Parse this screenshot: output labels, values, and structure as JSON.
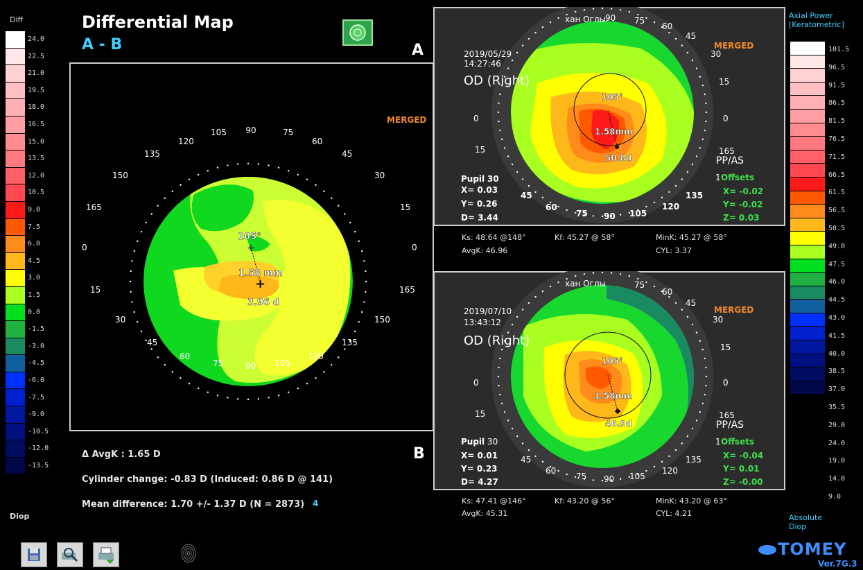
{
  "diff_panel": {
    "header": "Diff",
    "unit": "Diop",
    "values": [
      "24.0",
      "22.5",
      "21.0",
      "19.5",
      "18.0",
      "16.5",
      "15.0",
      "13.5",
      "12.0",
      "10.5",
      "9.0",
      "7.5",
      "6.0",
      "4.5",
      "3.0",
      "1.5",
      "0.0",
      "-1.5",
      "-3.0",
      "-4.5",
      "-6.0",
      "-7.5",
      "-9.0",
      "-10.5",
      "-12.0",
      "-13.5"
    ],
    "colors": [
      "#ffffff",
      "#ffe6e8",
      "#ffd0d4",
      "#ffc0c4",
      "#ffb0b4",
      "#ff9ea2",
      "#ff8c90",
      "#ff7a80",
      "#ff6068",
      "#ff4850",
      "#ff1a1a",
      "#ff5a00",
      "#ff8c1a",
      "#ffb81a",
      "#ffff00",
      "#a8ff20",
      "#00e020",
      "#20b040",
      "#1a8a60",
      "#1060a0",
      "#0030ff",
      "#0020d0",
      "#0018a0",
      "#001080",
      "#000c60",
      "#00084a"
    ]
  },
  "title": "Differential Map",
  "subtitle": "A - B",
  "label_a": "A",
  "label_b": "B",
  "merged": "MERGED",
  "diff_map": {
    "angle_105": "105°",
    "distance": "1.58 mm",
    "value": "3.96 d",
    "ticks": [
      "90",
      "75",
      "60",
      "45",
      "30",
      "15",
      "0",
      "165",
      "150",
      "135",
      "120",
      "105",
      "90",
      "75",
      "60",
      "45",
      "30",
      "15",
      "0",
      "165",
      "150",
      "135",
      "120",
      "105"
    ],
    "axis": {
      "t90": "90",
      "t75": "75",
      "t60": "60",
      "t45": "45",
      "t30": "30",
      "t15": "15",
      "t0r": "0",
      "t165": "165",
      "t150": "150",
      "t135": "135",
      "t120": "120",
      "t105b": "105",
      "t90b": "90",
      "t75b": "75",
      "t60b": "60",
      "t45b": "45",
      "t30b": "30",
      "t15b": "15",
      "t0l": "0",
      "t165l": "165",
      "t150l": "150",
      "t135l": "135",
      "t120l": "120",
      "t105l": "105"
    }
  },
  "summary": {
    "avgk": "Δ AvgK : 1.65 D",
    "cyl": "Cylinder change: -0.83 D (Induced:  0.86 D @ 141)",
    "mean": "Mean difference:  1.70 +/-  1.37 D (N = 2873)",
    "mean_badge": "4"
  },
  "exam_a": {
    "name": "хан Оглы",
    "date": "2019/05/29",
    "time": "14:27:46",
    "eye": "OD (Right)",
    "merged": "MERGED",
    "angle": "105°",
    "dist": "1.58mm",
    "val": "50.8d",
    "pp": "PP/AS",
    "pupil": "Pupil",
    "x": "X=  0.03",
    "y": "Y=  0.26",
    "d": "D=  3.44",
    "offsets": "Offsets",
    "ox": "X= -0.02",
    "oy": "Y= -0.02",
    "oz": "Z=  0.03",
    "ks": "Ks: 48.64 @148°",
    "kf": "Kf: 45.27 @ 58°",
    "mink": "MinK: 45.27 @ 58°",
    "avgk": "AvgK: 46.96",
    "cyl": "CYL: 3.37",
    "ticks": {
      "a90": "90",
      "a75": "75",
      "a60": "60",
      "a45": "45",
      "a30": "30",
      "a15": "15",
      "a0": "0",
      "a165": "165",
      "a30l": "30",
      "a45l": "45",
      "a60l": "60",
      "a75b": "75",
      "a90b": "90",
      "a105b": "105",
      "a120b": "120",
      "a135b": "135",
      "a1": "1",
      "a0l": "0",
      "a15l": "15"
    }
  },
  "exam_b": {
    "name": "хан Оглы",
    "date": "2019/07/10",
    "time": "13:43:12",
    "eye": "OD (Right)",
    "merged": "MERGED",
    "angle": "105°",
    "dist": "1.58mm",
    "val": "46.9d",
    "pp": "PP/AS",
    "pupil": "Pupil",
    "x": "X=  0.01",
    "y": "Y=  0.23",
    "d": "D=  4.27",
    "offsets": "Offsets",
    "ox": "X= -0.04",
    "oy": "Y=  0.01",
    "oz": "Z= -0.00",
    "ks": "Ks: 47.41 @146°",
    "kf": "Kf: 43.20 @ 56°",
    "mink": "MinK: 43.20 @ 63°",
    "avgk": "AvgK: 45.31",
    "cyl": "CYL: 4.21",
    "ticks": {
      "a75": "75",
      "a60": "60",
      "a45": "45",
      "a30": "30",
      "a15": "15",
      "a0": "0",
      "a165": "165",
      "a30l": "30",
      "a45l": "45",
      "a60l": "60",
      "a75b": "75",
      "a90b": "90",
      "a105b": "105",
      "a120b": "120",
      "a135b": "135",
      "a1": "1",
      "a0l": "0",
      "a15l": "15"
    }
  },
  "abs_panel": {
    "header1": "Axial Power",
    "header2": "[Keratometric]",
    "values": [
      "101.5",
      "96.5",
      "91.5",
      "86.5",
      "81.5",
      "76.5",
      "71.5",
      "66.5",
      "61.5",
      "56.5",
      "50.5",
      "49.0",
      "47.5",
      "46.0",
      "44.5",
      "43.0",
      "41.5",
      "40.0",
      "38.5",
      "37.0",
      "35.5",
      "29.0",
      "24.0",
      "19.0",
      "14.0",
      "9.0"
    ],
    "colors": [
      "#ffffff",
      "#ffe6e8",
      "#ffd0d4",
      "#ffc0c4",
      "#ffb0b4",
      "#ff9ea2",
      "#ff8c90",
      "#ff7a80",
      "#ff6068",
      "#ff4850",
      "#ff1a1a",
      "#ff5a00",
      "#ff8c1a",
      "#ffb81a",
      "#ffff00",
      "#a8ff20",
      "#00e020",
      "#20b040",
      "#1a8a60",
      "#1060a0",
      "#0030ff",
      "#0020d0",
      "#0018a0",
      "#001080",
      "#000c60",
      "#00084a"
    ],
    "footer1": "Absolute",
    "footer2": "Diop"
  },
  "brand": "TOMEY",
  "version": "Ver.7G.3",
  "toolbar": {
    "save": "save-icon",
    "zoom": "zoom-icon",
    "print": "print-icon"
  }
}
